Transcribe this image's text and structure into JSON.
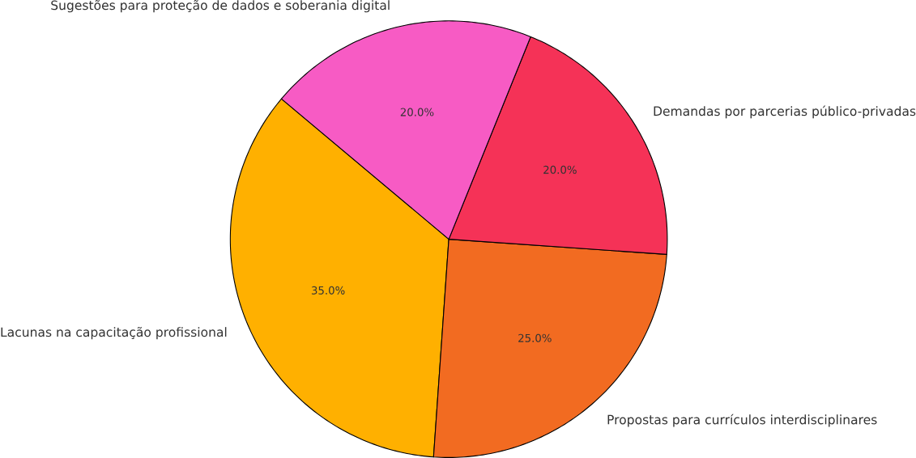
{
  "chart_data": {
    "type": "pie",
    "categories": [
      "Lacunas na capacitação profissional",
      "Propostas para currículos interdisciplinares",
      "Demandas por parcerias público-privadas",
      "Sugestões para proteção de dados e soberania digital"
    ],
    "values": [
      35,
      25,
      20,
      20
    ],
    "value_labels": [
      "35.0%",
      "25.0%",
      "20.0%",
      "20.0%"
    ],
    "colors": [
      "#ffb000",
      "#f26b21",
      "#f53257",
      "#f75bc4"
    ]
  }
}
